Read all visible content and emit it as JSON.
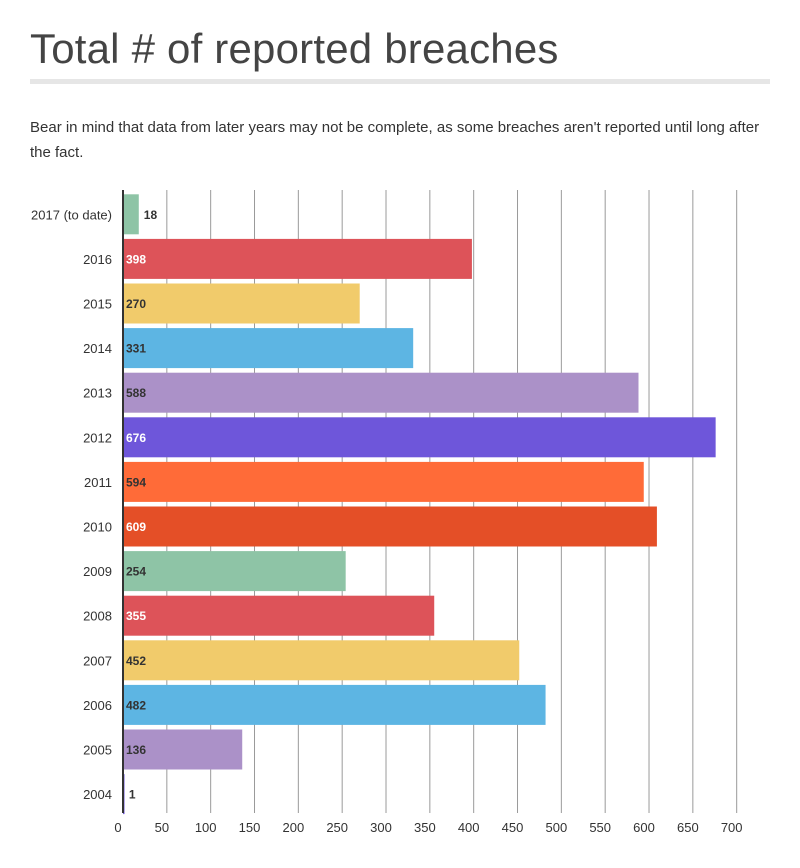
{
  "header": {
    "title": "Total # of reported breaches",
    "subtitle": "Bear in mind that data from later years may not be complete, as some breaches aren't reported until long after the fact."
  },
  "chart_data": {
    "type": "bar",
    "orientation": "horizontal",
    "categories": [
      "2017 (to date)",
      "2016",
      "2015",
      "2014",
      "2013",
      "2012",
      "2011",
      "2010",
      "2009",
      "2008",
      "2007",
      "2006",
      "2005",
      "2004"
    ],
    "values": [
      18,
      398,
      270,
      331,
      588,
      676,
      594,
      609,
      254,
      355,
      452,
      482,
      136,
      1
    ],
    "value_labels": [
      "18",
      "398",
      "270",
      "331",
      "588",
      "676",
      "594",
      "609",
      "254",
      "355",
      "452",
      "482",
      "136",
      "1"
    ],
    "colors": [
      "#8ec4a6",
      "#dd5359",
      "#f1cb6b",
      "#5db5e3",
      "#ab91c8",
      "#6e56da",
      "#ff6b38",
      "#e44f27",
      "#8ec4a6",
      "#dd5359",
      "#f1cb6b",
      "#5db5e3",
      "#ab91c8",
      "#6e56da"
    ],
    "label_colors": [
      "#333333",
      "#ffffff",
      "#333333",
      "#333333",
      "#333333",
      "#ffffff",
      "#333333",
      "#ffffff",
      "#333333",
      "#ffffff",
      "#333333",
      "#333333",
      "#333333",
      "#333333"
    ],
    "x_ticks": [
      0,
      50,
      100,
      150,
      200,
      250,
      300,
      350,
      400,
      450,
      500,
      550,
      600,
      650,
      700
    ],
    "x_tick_labels": [
      "0",
      "50",
      "100",
      "150",
      "200",
      "250",
      "300",
      "350",
      "400",
      "450",
      "500",
      "550",
      "600",
      "650",
      "700"
    ],
    "xlim": [
      0,
      700
    ],
    "title": "Total # of reported breaches",
    "xlabel": "",
    "ylabel": "",
    "grid": "vertical",
    "legend": "none"
  }
}
